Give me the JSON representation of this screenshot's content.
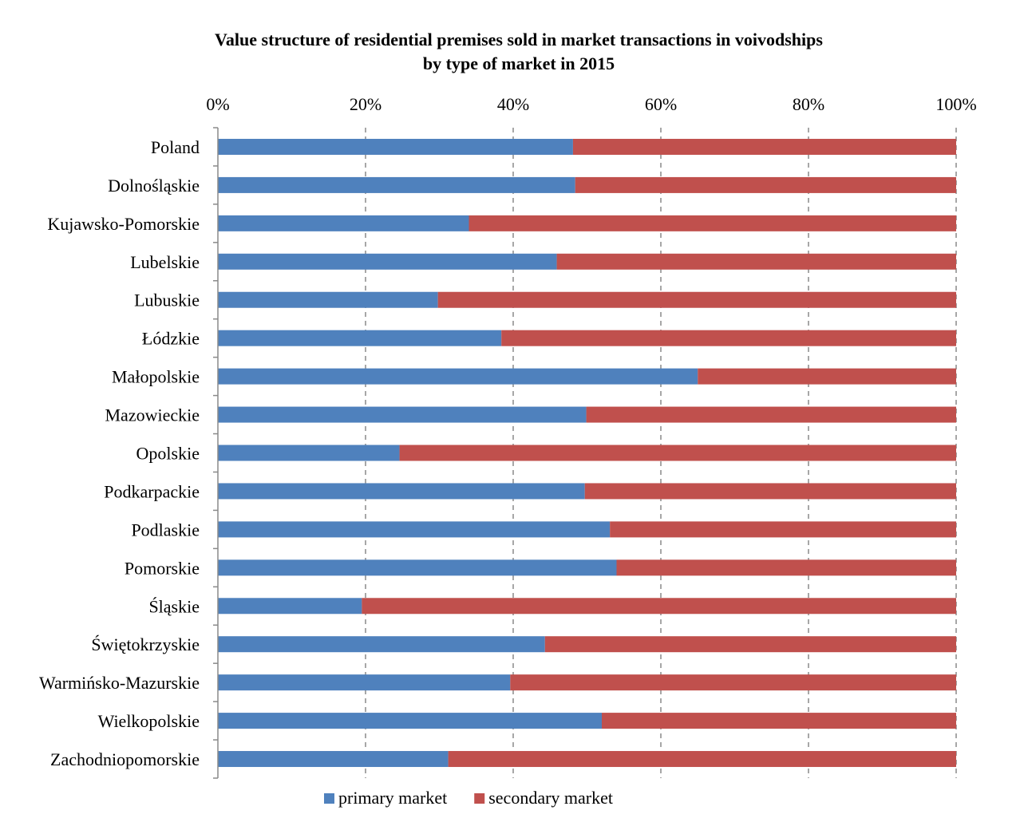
{
  "chart_data": {
    "type": "bar",
    "orientation": "horizontal",
    "stacked": "percent",
    "title": "Value structure of residential premises sold in market transactions in voivodships",
    "subtitle": "by type of market in 2015",
    "xlabel": "",
    "ylabel": "",
    "xlim": [
      0,
      100
    ],
    "x_tick_labels": [
      "0%",
      "20%",
      "40%",
      "60%",
      "80%",
      "100%"
    ],
    "grid": "vertical dashed",
    "legend_position": "bottom",
    "categories": [
      "Poland",
      "Dolnośląskie",
      "Kujawsko-Pomorskie",
      "Lubelskie",
      "Lubuskie",
      "Łódzkie",
      "Małopolskie",
      "Mazowieckie",
      "Opolskie",
      "Podkarpackie",
      "Podlaskie",
      "Pomorskie",
      "Śląskie",
      "Świętokrzyskie",
      "Warmińsko-Mazurskie",
      "Wielkopolskie",
      "Zachodniopomorskie"
    ],
    "series": [
      {
        "name": "primary market",
        "color": "#4F81BD",
        "values": [
          48.1,
          48.4,
          34.0,
          45.9,
          29.8,
          38.4,
          65.0,
          49.9,
          24.6,
          49.7,
          53.1,
          54.0,
          19.5,
          44.3,
          39.6,
          52.0,
          31.2
        ]
      },
      {
        "name": "secondary market",
        "color": "#C0504D",
        "values": [
          51.9,
          51.6,
          66.0,
          54.1,
          70.2,
          61.6,
          35.0,
          50.1,
          75.4,
          50.3,
          46.9,
          46.0,
          80.5,
          55.7,
          60.4,
          48.0,
          68.8
        ]
      }
    ]
  }
}
